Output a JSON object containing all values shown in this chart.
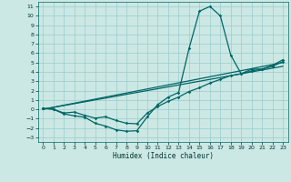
{
  "xlabel": "Humidex (Indice chaleur)",
  "bg_color": "#cce8e4",
  "grid_color": "#99cccc",
  "line_color": "#006666",
  "xlim": [
    -0.5,
    23.5
  ],
  "ylim": [
    -3.5,
    11.5
  ],
  "yticks": [
    -3,
    -2,
    -1,
    0,
    1,
    2,
    3,
    4,
    5,
    6,
    7,
    8,
    9,
    10,
    11
  ],
  "xticks": [
    0,
    1,
    2,
    3,
    4,
    5,
    6,
    7,
    8,
    9,
    10,
    11,
    12,
    13,
    14,
    15,
    16,
    17,
    18,
    19,
    20,
    21,
    22,
    23
  ],
  "line1_x": [
    0,
    1,
    2,
    3,
    4,
    5,
    6,
    7,
    8,
    9,
    10,
    11,
    12,
    13,
    14,
    15,
    16,
    17,
    18,
    19,
    20,
    21,
    22,
    23
  ],
  "line1_y": [
    0.1,
    0.0,
    -0.5,
    -0.7,
    -0.85,
    -1.5,
    -1.8,
    -2.2,
    -2.35,
    -2.3,
    -0.8,
    0.5,
    1.3,
    1.8,
    6.5,
    10.5,
    11.0,
    10.0,
    5.8,
    3.8,
    4.3,
    4.3,
    4.7,
    5.3
  ],
  "line2_x": [
    0,
    1,
    2,
    3,
    4,
    5,
    6,
    7,
    8,
    9,
    10,
    11,
    12,
    13,
    14,
    15,
    16,
    17,
    18,
    19,
    20,
    21,
    22,
    23
  ],
  "line2_y": [
    0.1,
    0.0,
    -0.4,
    -0.3,
    -0.65,
    -0.95,
    -0.8,
    -1.2,
    -1.5,
    -1.55,
    -0.4,
    0.3,
    0.85,
    1.3,
    1.9,
    2.3,
    2.8,
    3.2,
    3.6,
    3.8,
    4.1,
    4.3,
    4.6,
    5.1
  ],
  "line3_x": [
    0,
    23
  ],
  "line3_y": [
    0.0,
    5.0
  ],
  "line4_x": [
    0,
    23
  ],
  "line4_y": [
    0.0,
    4.6
  ]
}
